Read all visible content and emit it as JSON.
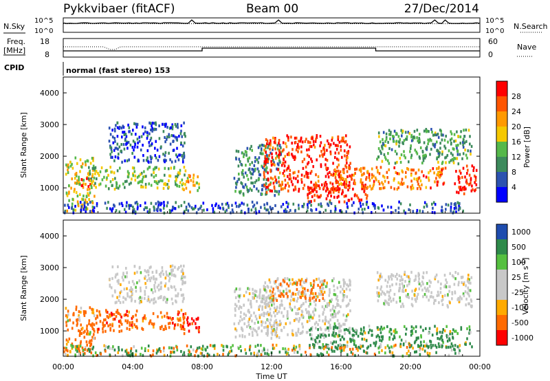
{
  "header": {
    "station": "Pykkvibaer (fitACF)",
    "beam": "Beam 00",
    "date": "27/Dec/2014"
  },
  "noise_panel": {
    "left_label": "N.Sky",
    "right_label": "N.Search",
    "left_ticks": [
      "10^5",
      "10^0"
    ],
    "right_ticks": [
      "10^5",
      "10^0"
    ]
  },
  "freq_panel": {
    "left_label_1": "Freq.",
    "left_label_2": "[MHz]",
    "left_ticks": [
      "18",
      "8"
    ],
    "right_label": "Nave",
    "right_ticks": [
      "60",
      "0"
    ]
  },
  "cpid": {
    "label": "CPID",
    "value": "normal (fast stereo) 153"
  },
  "colors": {
    "power": [
      "#0000ff",
      "#2c52b0",
      "#3d8a5c",
      "#55b84a",
      "#f5c800",
      "#ff9900",
      "#ff5500",
      "#ff0000"
    ],
    "velocity": [
      "#ff0000",
      "#ff6a00",
      "#ffaa00",
      "#c8c8c8",
      "#c8c8c8",
      "#55c040",
      "#2e8a4a",
      "#1e4cae"
    ]
  },
  "chart_data": [
    {
      "type": "heatmap",
      "name_panel": "power",
      "ylabel": "Slant Range [km]",
      "yticks": [
        1000,
        2000,
        3000,
        4000
      ],
      "ylim": [
        200,
        4500
      ],
      "xlim": [
        0,
        24
      ],
      "colorbar": {
        "label": "Power [dB]",
        "ticks": [
          "4",
          "8",
          "12",
          "16",
          "20",
          "24",
          "28"
        ],
        "range": [
          0,
          32
        ]
      },
      "echo_regions": [
        {
          "t": [
            0.1,
            1.8
          ],
          "r": [
            300,
            2000
          ],
          "v": 18
        },
        {
          "t": [
            1.0,
            1.6
          ],
          "r": [
            950,
            1350
          ],
          "v": 29
        },
        {
          "t": [
            1.4,
            7.0
          ],
          "r": [
            1000,
            1700
          ],
          "v": 14
        },
        {
          "t": [
            2.6,
            7.0
          ],
          "r": [
            1850,
            3100
          ],
          "v": 6
        },
        {
          "t": [
            6.8,
            7.8
          ],
          "r": [
            900,
            1500
          ],
          "v": 20
        },
        {
          "t": [
            9.8,
            12.5
          ],
          "r": [
            800,
            2400
          ],
          "v": 10
        },
        {
          "t": [
            11.5,
            16.5
          ],
          "r": [
            900,
            2700
          ],
          "v": 28
        },
        {
          "t": [
            14.0,
            17.5
          ],
          "r": [
            600,
            1200
          ],
          "v": 29
        },
        {
          "t": [
            15.5,
            22.0
          ],
          "r": [
            1000,
            1700
          ],
          "v": 24
        },
        {
          "t": [
            18.0,
            23.5
          ],
          "r": [
            1800,
            2900
          ],
          "v": 12
        },
        {
          "t": [
            22.5,
            23.8
          ],
          "r": [
            800,
            1800
          ],
          "v": 29
        },
        {
          "t": [
            0.0,
            23.0
          ],
          "r": [
            250,
            600
          ],
          "v": 6
        }
      ]
    },
    {
      "type": "heatmap",
      "name_panel": "velocity",
      "ylabel": "Slant Range [km]",
      "xlabel": "Time UT",
      "xticks": [
        "00:00",
        "04:00",
        "08:00",
        "12:00",
        "16:00",
        "20:00",
        "00:00"
      ],
      "yticks": [
        1000,
        2000,
        3000,
        4000
      ],
      "ylim": [
        200,
        4500
      ],
      "xlim": [
        0,
        24
      ],
      "colorbar": {
        "label": "Velocity [m s",
        "label_sup": "-1",
        "label_end": "]",
        "ticks": [
          "1000",
          "500",
          "100",
          "25",
          "-25",
          "-100",
          "-500",
          "-1000"
        ]
      },
      "echo_regions": [
        {
          "t": [
            0.1,
            1.8
          ],
          "r": [
            300,
            1800
          ],
          "v": -200
        },
        {
          "t": [
            1.4,
            7.0
          ],
          "r": [
            1000,
            1700
          ],
          "v": -300
        },
        {
          "t": [
            2.6,
            7.0
          ],
          "r": [
            1900,
            3100
          ],
          "v": 0
        },
        {
          "t": [
            6.8,
            7.8
          ],
          "r": [
            900,
            1500
          ],
          "v": -600
        },
        {
          "t": [
            9.8,
            12.5
          ],
          "r": [
            800,
            2400
          ],
          "v": 0
        },
        {
          "t": [
            11.5,
            16.5
          ],
          "r": [
            900,
            2700
          ],
          "v": 0
        },
        {
          "t": [
            12.0,
            15.0
          ],
          "r": [
            2000,
            2700
          ],
          "v": -200
        },
        {
          "t": [
            14.0,
            23.5
          ],
          "r": [
            500,
            1200
          ],
          "v": 200
        },
        {
          "t": [
            18.0,
            23.5
          ],
          "r": [
            1800,
            2900
          ],
          "v": 0
        },
        {
          "t": [
            0.0,
            23.0
          ],
          "r": [
            250,
            600
          ],
          "v": 60
        }
      ]
    }
  ]
}
